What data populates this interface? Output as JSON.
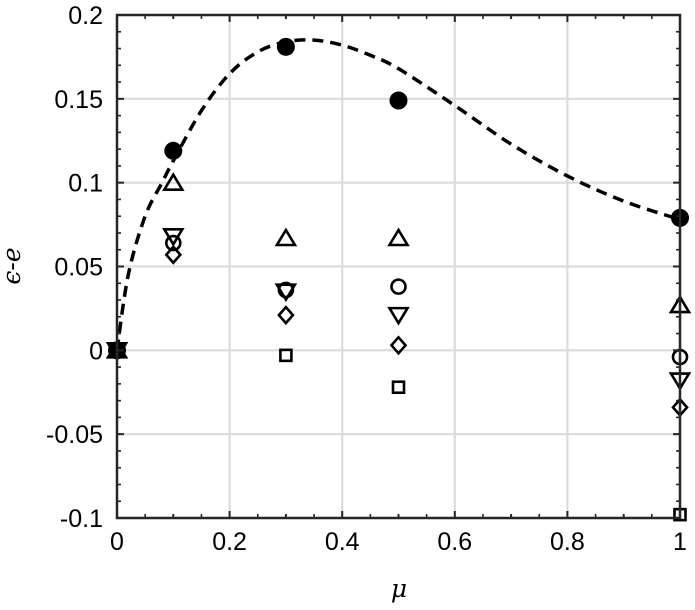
{
  "chart_data": {
    "type": "scatter",
    "xlabel": "μ",
    "ylabel": "ϵ-e",
    "xlim": [
      0,
      1
    ],
    "ylim": [
      -0.1,
      0.2
    ],
    "xticks": [
      0,
      0.1,
      0.2,
      0.3,
      0.4,
      0.5,
      0.6,
      0.7,
      0.8,
      0.9,
      1
    ],
    "xtick_labels": [
      "0",
      "",
      "0.2",
      "",
      "0.4",
      "",
      "0.6",
      "",
      "0.8",
      "",
      "1"
    ],
    "yticks": [
      -0.1,
      -0.05,
      0,
      0.05,
      0.1,
      0.15,
      0.2
    ],
    "ytick_labels": [
      "-0.1",
      "-0.05",
      "0",
      "0.05",
      "0.1",
      "0.15",
      "0.2"
    ],
    "grid": true,
    "series": [
      {
        "marker": "dashed-line",
        "color": "#000000",
        "x": [
          0,
          0.02,
          0.05,
          0.08,
          0.1,
          0.15,
          0.2,
          0.25,
          0.3,
          0.35,
          0.4,
          0.45,
          0.5,
          0.6,
          0.7,
          0.8,
          0.9,
          1.0
        ],
        "y": [
          0,
          0.045,
          0.08,
          0.1,
          0.113,
          0.143,
          0.165,
          0.178,
          0.184,
          0.185,
          0.182,
          0.176,
          0.168,
          0.146,
          0.123,
          0.104,
          0.089,
          0.078
        ]
      },
      {
        "marker": "filled-circle",
        "color": "#000000",
        "x": [
          0,
          0.1,
          0.3,
          0.5,
          1
        ],
        "y": [
          0,
          0.119,
          0.181,
          0.149,
          0.079
        ]
      },
      {
        "marker": "triangle-up",
        "color": "#000000",
        "x": [
          0,
          0.1,
          0.3,
          0.5,
          1
        ],
        "y": [
          0,
          0.1,
          0.067,
          0.067,
          0.027
        ]
      },
      {
        "marker": "triangle-down",
        "color": "#000000",
        "x": [
          0,
          0.1,
          0.3,
          0.5,
          1
        ],
        "y": [
          0,
          0.068,
          0.035,
          0.021,
          -0.018
        ]
      },
      {
        "marker": "circle",
        "color": "#000000",
        "x": [
          0,
          0.1,
          0.3,
          0.5,
          1
        ],
        "y": [
          0,
          0.064,
          0.036,
          0.038,
          -0.004
        ]
      },
      {
        "marker": "diamond",
        "color": "#000000",
        "x": [
          0,
          0.1,
          0.3,
          0.5,
          1
        ],
        "y": [
          0,
          0.057,
          0.021,
          0.003,
          -0.034
        ]
      },
      {
        "marker": "square",
        "color": "#000000",
        "x": [
          0,
          0.3,
          0.5,
          1
        ],
        "y": [
          0,
          -0.003,
          -0.022,
          -0.098
        ]
      }
    ]
  }
}
